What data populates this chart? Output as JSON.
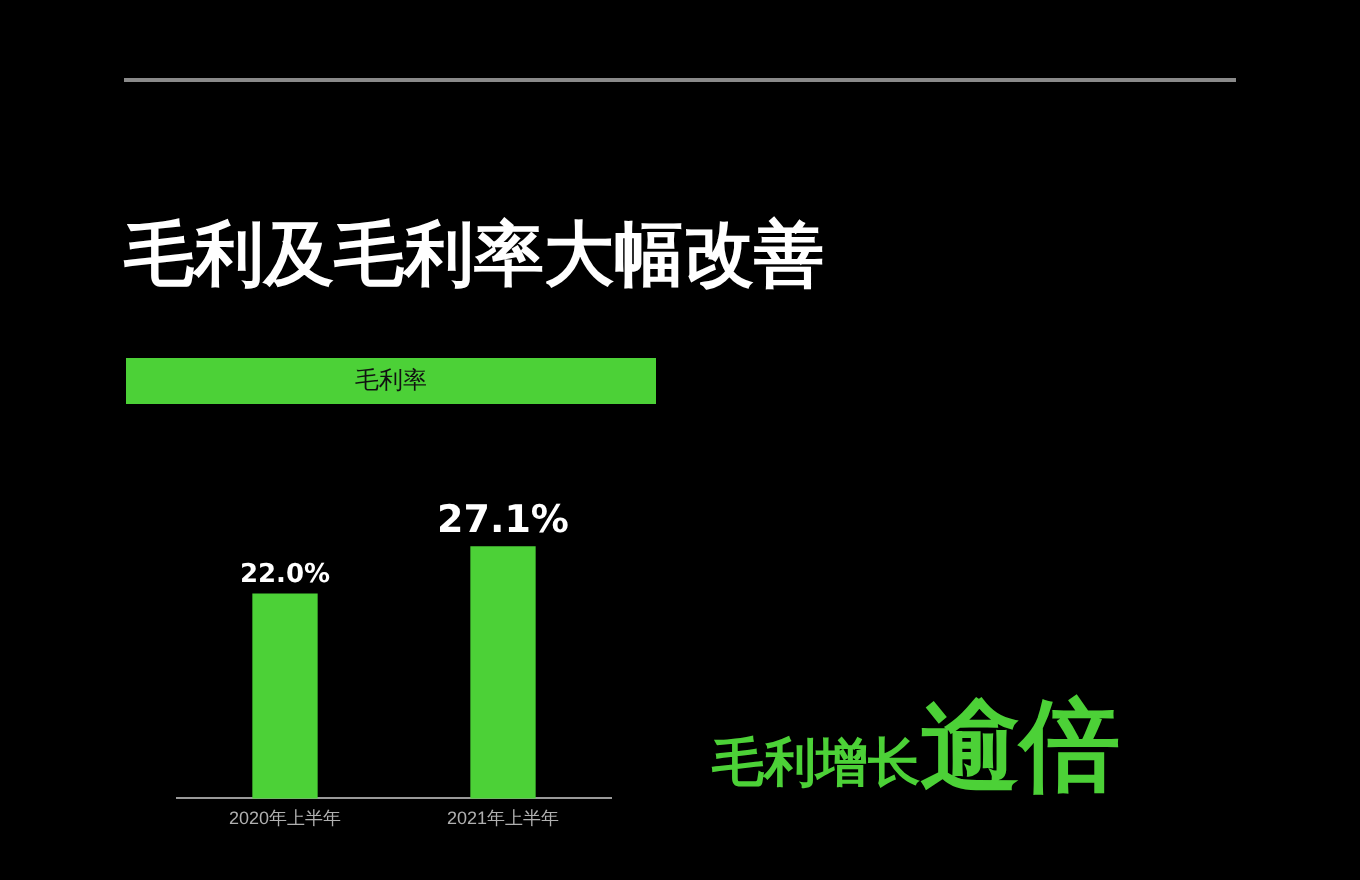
{
  "chart_data": {
    "type": "bar",
    "title": "毛利及毛利率大幅改善",
    "subtitle": "毛利率",
    "categories": [
      "2020年上半年",
      "2021年上半年"
    ],
    "values": [
      22.0,
      27.1
    ],
    "color": "#4cd137",
    "value_labels": [
      "22.0%",
      "27.1%"
    ],
    "tick_labels": "x",
    "annotations": [
      "毛利增长",
      "逾倍"
    ]
  }
}
